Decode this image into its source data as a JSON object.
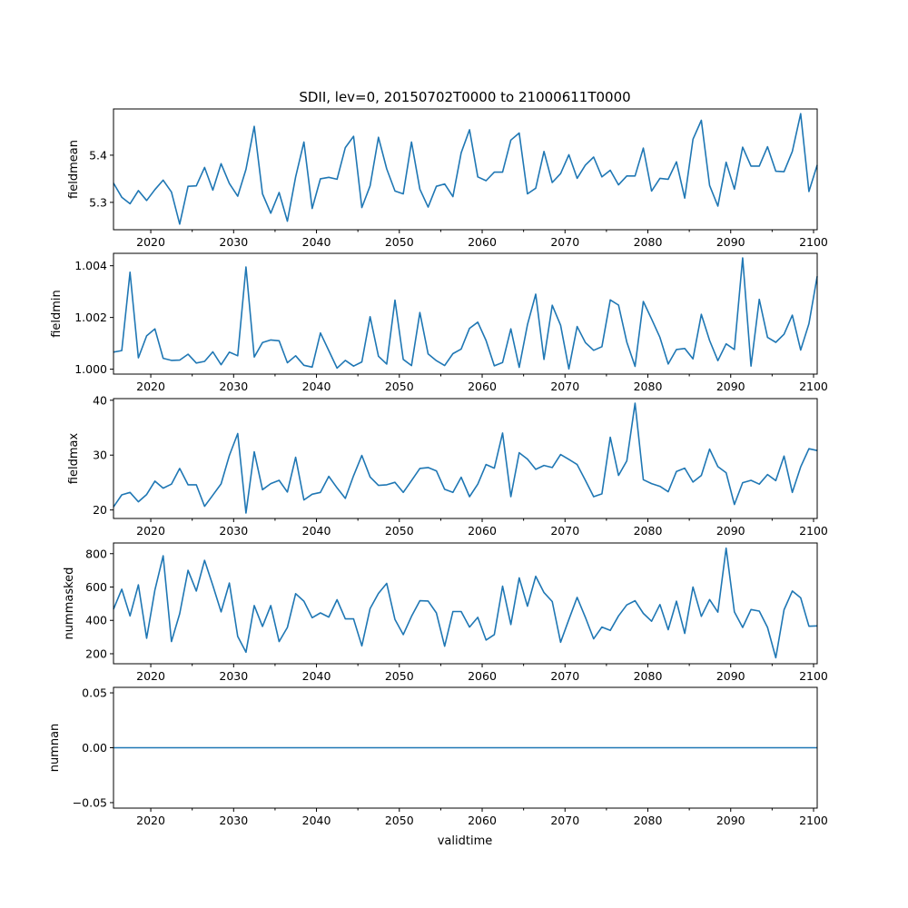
{
  "chart_data": {
    "type": "line",
    "title": "SDII, lev=0, 20150702T0000 to 21000611T0000",
    "xlabel": "validtime",
    "x_start": 2015.5,
    "x_end": 2100.44,
    "xlim": [
      2015.5,
      2100.44
    ],
    "xticks": [
      "2020",
      "2030",
      "2040",
      "2050",
      "2060",
      "2070",
      "2080",
      "2090",
      "2100"
    ],
    "line_color": "#1f77b4",
    "grid": false,
    "panels": [
      {
        "ylabel": "fieldmean",
        "ylim": [
          5.242,
          5.498
        ],
        "yticks": [
          "5.3",
          "5.4"
        ],
        "values": [
          5.341,
          5.311,
          5.297,
          5.325,
          5.304,
          5.327,
          5.347,
          5.322,
          5.254,
          5.334,
          5.335,
          5.374,
          5.326,
          5.382,
          5.34,
          5.313,
          5.37,
          5.461,
          5.318,
          5.277,
          5.321,
          5.26,
          5.354,
          5.428,
          5.287,
          5.35,
          5.353,
          5.349,
          5.416,
          5.44,
          5.289,
          5.335,
          5.438,
          5.371,
          5.324,
          5.318,
          5.428,
          5.328,
          5.29,
          5.334,
          5.339,
          5.312,
          5.405,
          5.454,
          5.354,
          5.346,
          5.364,
          5.364,
          5.432,
          5.447,
          5.318,
          5.33,
          5.408,
          5.342,
          5.361,
          5.401,
          5.351,
          5.379,
          5.396,
          5.354,
          5.368,
          5.337,
          5.356,
          5.356,
          5.415,
          5.324,
          5.351,
          5.349,
          5.386,
          5.309,
          5.434,
          5.474,
          5.336,
          5.292,
          5.385,
          5.328,
          5.417,
          5.377,
          5.377,
          5.418,
          5.366,
          5.365,
          5.408,
          5.488,
          5.323,
          5.379
        ]
      },
      {
        "ylabel": "fieldmin",
        "ylim": [
          0.99981,
          1.00448
        ],
        "yticks": [
          "1.000",
          "1.002",
          "1.004"
        ],
        "values": [
          1.00066,
          1.00072,
          1.00375,
          1.00044,
          1.00129,
          1.00156,
          1.00042,
          1.00034,
          1.00035,
          1.00058,
          1.00024,
          1.0003,
          1.00067,
          1.00017,
          1.00066,
          1.00052,
          1.00395,
          1.00047,
          1.00103,
          1.00113,
          1.0011,
          1.00025,
          1.00052,
          1.00015,
          1.00008,
          1.0014,
          1.00072,
          1.00004,
          1.00034,
          1.00012,
          1.00028,
          1.00203,
          1.0005,
          1.0002,
          1.00267,
          1.00038,
          1.00014,
          1.00219,
          1.00059,
          1.00033,
          1.00014,
          1.0006,
          1.00078,
          1.00158,
          1.00182,
          1.00111,
          1.00013,
          1.00026,
          1.00156,
          1.00007,
          1.00172,
          1.0029,
          1.00038,
          1.00247,
          1.0017,
          1.00001,
          1.00165,
          1.00103,
          1.00073,
          1.00087,
          1.00268,
          1.00248,
          1.00105,
          1.00011,
          1.00262,
          1.00194,
          1.00123,
          1.0002,
          1.00076,
          1.0008,
          1.0004,
          1.00212,
          1.00111,
          1.00033,
          1.00098,
          1.00076,
          1.0043,
          1.00012,
          1.0027,
          1.00123,
          1.00104,
          1.00135,
          1.00209,
          1.00074,
          1.00176,
          1.00359
        ]
      },
      {
        "ylabel": "fieldmax",
        "ylim": [
          18.45,
          40.3
        ],
        "yticks": [
          "20",
          "30",
          "40"
        ],
        "values": [
          20.55,
          22.76,
          23.2,
          21.49,
          22.82,
          25.25,
          23.98,
          24.7,
          27.57,
          24.59,
          24.59,
          20.66,
          22.71,
          24.75,
          29.94,
          33.92,
          19.45,
          30.61,
          23.7,
          24.81,
          25.41,
          23.26,
          29.61,
          21.82,
          22.87,
          23.2,
          26.13,
          24.03,
          22.1,
          26.24,
          29.94,
          26.02,
          24.48,
          24.59,
          25.03,
          23.2,
          25.36,
          27.57,
          27.73,
          27.13,
          23.76,
          23.2,
          25.97,
          22.43,
          24.7,
          28.29,
          27.62,
          34.03,
          22.43,
          30.44,
          29.28,
          27.4,
          28.12,
          27.73,
          30.11,
          29.23,
          28.29,
          25.41,
          22.43,
          22.93,
          33.26,
          26.3,
          28.95,
          39.45,
          25.52,
          24.81,
          24.31,
          23.31,
          27.02,
          27.62,
          25.08,
          26.3,
          31.1,
          27.9,
          26.8,
          21.0,
          24.97,
          25.41,
          24.7,
          26.46,
          25.36,
          29.83,
          23.2,
          27.85,
          31.16,
          30.83
        ]
      },
      {
        "ylabel": "nummasked",
        "ylim": [
          140,
          864
        ],
        "yticks": [
          "200",
          "400",
          "600",
          "800"
        ],
        "values": [
          467,
          587,
          427,
          613,
          293,
          582,
          787,
          273,
          440,
          700,
          576,
          760,
          609,
          451,
          624,
          304,
          209,
          489,
          364,
          489,
          273,
          358,
          560,
          515,
          416,
          445,
          420,
          524,
          409,
          409,
          247,
          471,
          562,
          622,
          405,
          315,
          424,
          518,
          516,
          445,
          245,
          453,
          453,
          360,
          418,
          282,
          315,
          605,
          375,
          655,
          485,
          664,
          567,
          513,
          269,
          405,
          538,
          418,
          289,
          360,
          340,
          427,
          493,
          518,
          442,
          395,
          495,
          344,
          515,
          322,
          600,
          424,
          525,
          449,
          833,
          451,
          358,
          465,
          456,
          358,
          176,
          464,
          576,
          535,
          365,
          367
        ]
      },
      {
        "ylabel": "numnan",
        "ylim": [
          -0.055,
          0.055
        ],
        "yticks": [
          "−0.05",
          "0.00",
          "0.05"
        ],
        "values": [
          0,
          0,
          0,
          0,
          0,
          0,
          0,
          0,
          0,
          0,
          0,
          0,
          0,
          0,
          0,
          0,
          0,
          0,
          0,
          0,
          0,
          0,
          0,
          0,
          0,
          0,
          0,
          0,
          0,
          0,
          0,
          0,
          0,
          0,
          0,
          0,
          0,
          0,
          0,
          0,
          0,
          0,
          0,
          0,
          0,
          0,
          0,
          0,
          0,
          0,
          0,
          0,
          0,
          0,
          0,
          0,
          0,
          0,
          0,
          0,
          0,
          0,
          0,
          0,
          0,
          0,
          0,
          0,
          0,
          0,
          0,
          0,
          0,
          0,
          0,
          0,
          0,
          0,
          0,
          0,
          0,
          0,
          0,
          0,
          0,
          0
        ]
      }
    ]
  }
}
